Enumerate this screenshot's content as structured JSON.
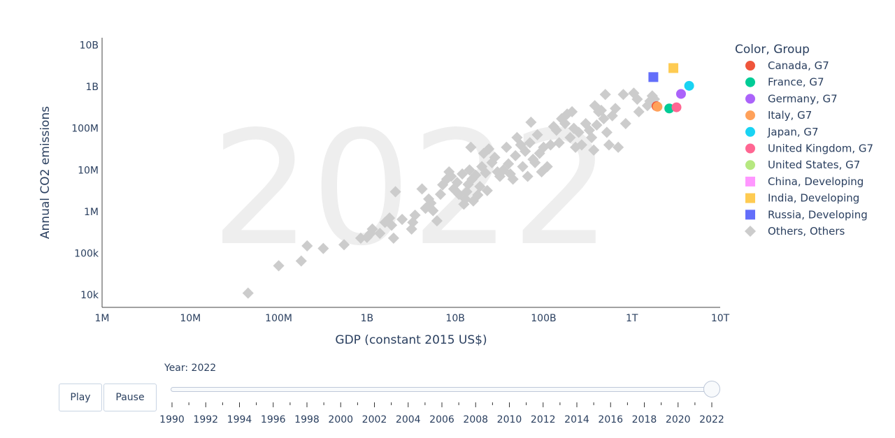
{
  "chart_data": {
    "type": "scatter",
    "watermark": "2022",
    "xlabel": "GDP (constant 2015 US$)",
    "ylabel": "Annual CO2 emissions",
    "x_scale": "log",
    "y_scale": "log",
    "xlim": [
      1000000,
      10000000000000
    ],
    "ylim": [
      5000,
      15000000000
    ],
    "x_ticks": [
      {
        "value": 1000000,
        "label": "1M"
      },
      {
        "value": 10000000,
        "label": "10M"
      },
      {
        "value": 100000000,
        "label": "100M"
      },
      {
        "value": 1000000000,
        "label": "1B"
      },
      {
        "value": 10000000000,
        "label": "10B"
      },
      {
        "value": 100000000000,
        "label": "100B"
      },
      {
        "value": 1000000000000,
        "label": "1T"
      },
      {
        "value": 10000000000000,
        "label": "10T"
      }
    ],
    "y_ticks": [
      {
        "value": 10000,
        "label": "10k"
      },
      {
        "value": 100000,
        "label": "100k"
      },
      {
        "value": 1000000,
        "label": "1M"
      },
      {
        "value": 10000000,
        "label": "10M"
      },
      {
        "value": 100000000,
        "label": "100M"
      },
      {
        "value": 1000000000,
        "label": "1B"
      },
      {
        "value": 10000000000,
        "label": "10B"
      }
    ],
    "grid": false,
    "legend_position": "right",
    "legend_title": "Color, Group",
    "series": [
      {
        "name": "Canada, G7",
        "color": "#EF553B",
        "symbol": "circle",
        "points": [
          [
            1900000000000,
            340000000
          ]
        ]
      },
      {
        "name": "France, G7",
        "color": "#00CC96",
        "symbol": "circle",
        "points": [
          [
            2650000000000,
            300000000
          ]
        ]
      },
      {
        "name": "Germany, G7",
        "color": "#AB63FA",
        "symbol": "circle",
        "points": [
          [
            3600000000000,
            670000000
          ]
        ]
      },
      {
        "name": "Italy, G7",
        "color": "#FFA15A",
        "symbol": "circle",
        "points": [
          [
            1950000000000,
            330000000
          ]
        ]
      },
      {
        "name": "Japan, G7",
        "color": "#19D3F3",
        "symbol": "circle",
        "points": [
          [
            4450000000000,
            1050000000
          ]
        ]
      },
      {
        "name": "United Kingdom, G7",
        "color": "#FF6692",
        "symbol": "circle",
        "points": [
          [
            3200000000000,
            320000000
          ]
        ]
      },
      {
        "name": "United States, G7",
        "color": "#B6E880",
        "symbol": "circle",
        "points": []
      },
      {
        "name": "China, Developing",
        "color": "#FF97FF",
        "symbol": "square",
        "points": []
      },
      {
        "name": "India, Developing",
        "color": "#FECB52",
        "symbol": "square",
        "points": [
          [
            2950000000000,
            2800000000
          ]
        ]
      },
      {
        "name": "Russia, Developing",
        "color": "#636EFA",
        "symbol": "square",
        "points": [
          [
            1750000000000,
            1700000000
          ]
        ]
      },
      {
        "name": "Others, Others",
        "color": "#cccccc",
        "symbol": "diamond",
        "points": [
          [
            45000000,
            11000
          ],
          [
            100000000,
            50000
          ],
          [
            180000000,
            65000
          ],
          [
            210000000,
            150000
          ],
          [
            320000000,
            130000
          ],
          [
            550000000,
            160000
          ],
          [
            850000000,
            230000
          ],
          [
            1000000000,
            240000
          ],
          [
            1100000000,
            300000
          ],
          [
            1150000000,
            380000
          ],
          [
            1400000000,
            300000
          ],
          [
            1600000000,
            550000
          ],
          [
            1800000000,
            700000
          ],
          [
            1900000000,
            470000
          ],
          [
            2000000000,
            230000
          ],
          [
            2100000000,
            3000000
          ],
          [
            2500000000,
            650000
          ],
          [
            3200000000,
            380000
          ],
          [
            3300000000,
            550000
          ],
          [
            3500000000,
            820000
          ],
          [
            4200000000,
            3500000
          ],
          [
            4600000000,
            1200000
          ],
          [
            5000000000,
            2000000
          ],
          [
            5300000000,
            1600000
          ],
          [
            5600000000,
            1050000
          ],
          [
            6200000000,
            600000
          ],
          [
            6800000000,
            2600000
          ],
          [
            7200000000,
            4400000
          ],
          [
            8000000000,
            6000000
          ],
          [
            8500000000,
            9000000
          ],
          [
            9000000000,
            7000000
          ],
          [
            9600000000,
            3500000
          ],
          [
            10500000000,
            5000000
          ],
          [
            11000000000,
            2600000
          ],
          [
            12000000000,
            8000000
          ],
          [
            12500000000,
            1500000
          ],
          [
            13000000000,
            2000000
          ],
          [
            13500000000,
            3000000
          ],
          [
            14000000000,
            4500000
          ],
          [
            14500000000,
            10000000
          ],
          [
            15000000000,
            35000000
          ],
          [
            15500000000,
            6000000
          ],
          [
            16000000000,
            1800000
          ],
          [
            17000000000,
            7500000
          ],
          [
            18000000000,
            2500000
          ],
          [
            19000000000,
            4000000
          ],
          [
            20000000000,
            12000000
          ],
          [
            21000000000,
            25000000
          ],
          [
            22000000000,
            8500000
          ],
          [
            23000000000,
            3200000
          ],
          [
            24000000000,
            32000000
          ],
          [
            26000000000,
            15000000
          ],
          [
            28000000000,
            20000000
          ],
          [
            30000000000,
            9000000
          ],
          [
            32000000000,
            7000000
          ],
          [
            35000000000,
            10000000
          ],
          [
            38000000000,
            35000000
          ],
          [
            40000000000,
            14000000
          ],
          [
            42000000000,
            8000000
          ],
          [
            45000000000,
            6000000
          ],
          [
            48000000000,
            22000000
          ],
          [
            50000000000,
            60000000
          ],
          [
            55000000000,
            40000000
          ],
          [
            58000000000,
            12000000
          ],
          [
            62000000000,
            28000000
          ],
          [
            66000000000,
            7000000
          ],
          [
            70000000000,
            45000000
          ],
          [
            72000000000,
            140000000
          ],
          [
            76000000000,
            18000000
          ],
          [
            80000000000,
            15000000
          ],
          [
            85000000000,
            70000000
          ],
          [
            90000000000,
            25000000
          ],
          [
            95000000000,
            9000000
          ],
          [
            100000000000,
            35000000
          ],
          [
            110000000000,
            12000000
          ],
          [
            120000000000,
            40000000
          ],
          [
            130000000000,
            110000000
          ],
          [
            140000000000,
            90000000
          ],
          [
            150000000000,
            45000000
          ],
          [
            160000000000,
            170000000
          ],
          [
            175000000000,
            130000000
          ],
          [
            185000000000,
            220000000
          ],
          [
            200000000000,
            60000000
          ],
          [
            210000000000,
            250000000
          ],
          [
            220000000000,
            100000000
          ],
          [
            230000000000,
            35000000
          ],
          [
            250000000000,
            80000000
          ],
          [
            270000000000,
            40000000
          ],
          [
            300000000000,
            130000000
          ],
          [
            330000000000,
            90000000
          ],
          [
            350000000000,
            60000000
          ],
          [
            370000000000,
            30000000
          ],
          [
            380000000000,
            350000000
          ],
          [
            400000000000,
            120000000
          ],
          [
            420000000000,
            250000000
          ],
          [
            450000000000,
            270000000
          ],
          [
            480000000000,
            170000000
          ],
          [
            500000000000,
            650000000
          ],
          [
            520000000000,
            80000000
          ],
          [
            550000000000,
            40000000
          ],
          [
            600000000000,
            200000000
          ],
          [
            650000000000,
            300000000
          ],
          [
            700000000000,
            35000000
          ],
          [
            800000000000,
            650000000
          ],
          [
            850000000000,
            130000000
          ],
          [
            1050000000000,
            700000000
          ],
          [
            1150000000000,
            500000000
          ],
          [
            1200000000000,
            250000000
          ],
          [
            1500000000000,
            350000000
          ],
          [
            1600000000000,
            450000000
          ],
          [
            1700000000000,
            600000000
          ],
          [
            1800000000000,
            500000000
          ]
        ]
      }
    ]
  },
  "controls": {
    "play_label": "Play",
    "pause_label": "Pause",
    "slider": {
      "prefix": "Year: ",
      "current": 2022,
      "min": 1990,
      "max": 2022,
      "labels": [
        "1990",
        "1992",
        "1994",
        "1996",
        "1998",
        "2000",
        "2002",
        "2004",
        "2006",
        "2008",
        "2010",
        "2012",
        "2014",
        "2016",
        "2018",
        "2020",
        "2022"
      ]
    }
  }
}
